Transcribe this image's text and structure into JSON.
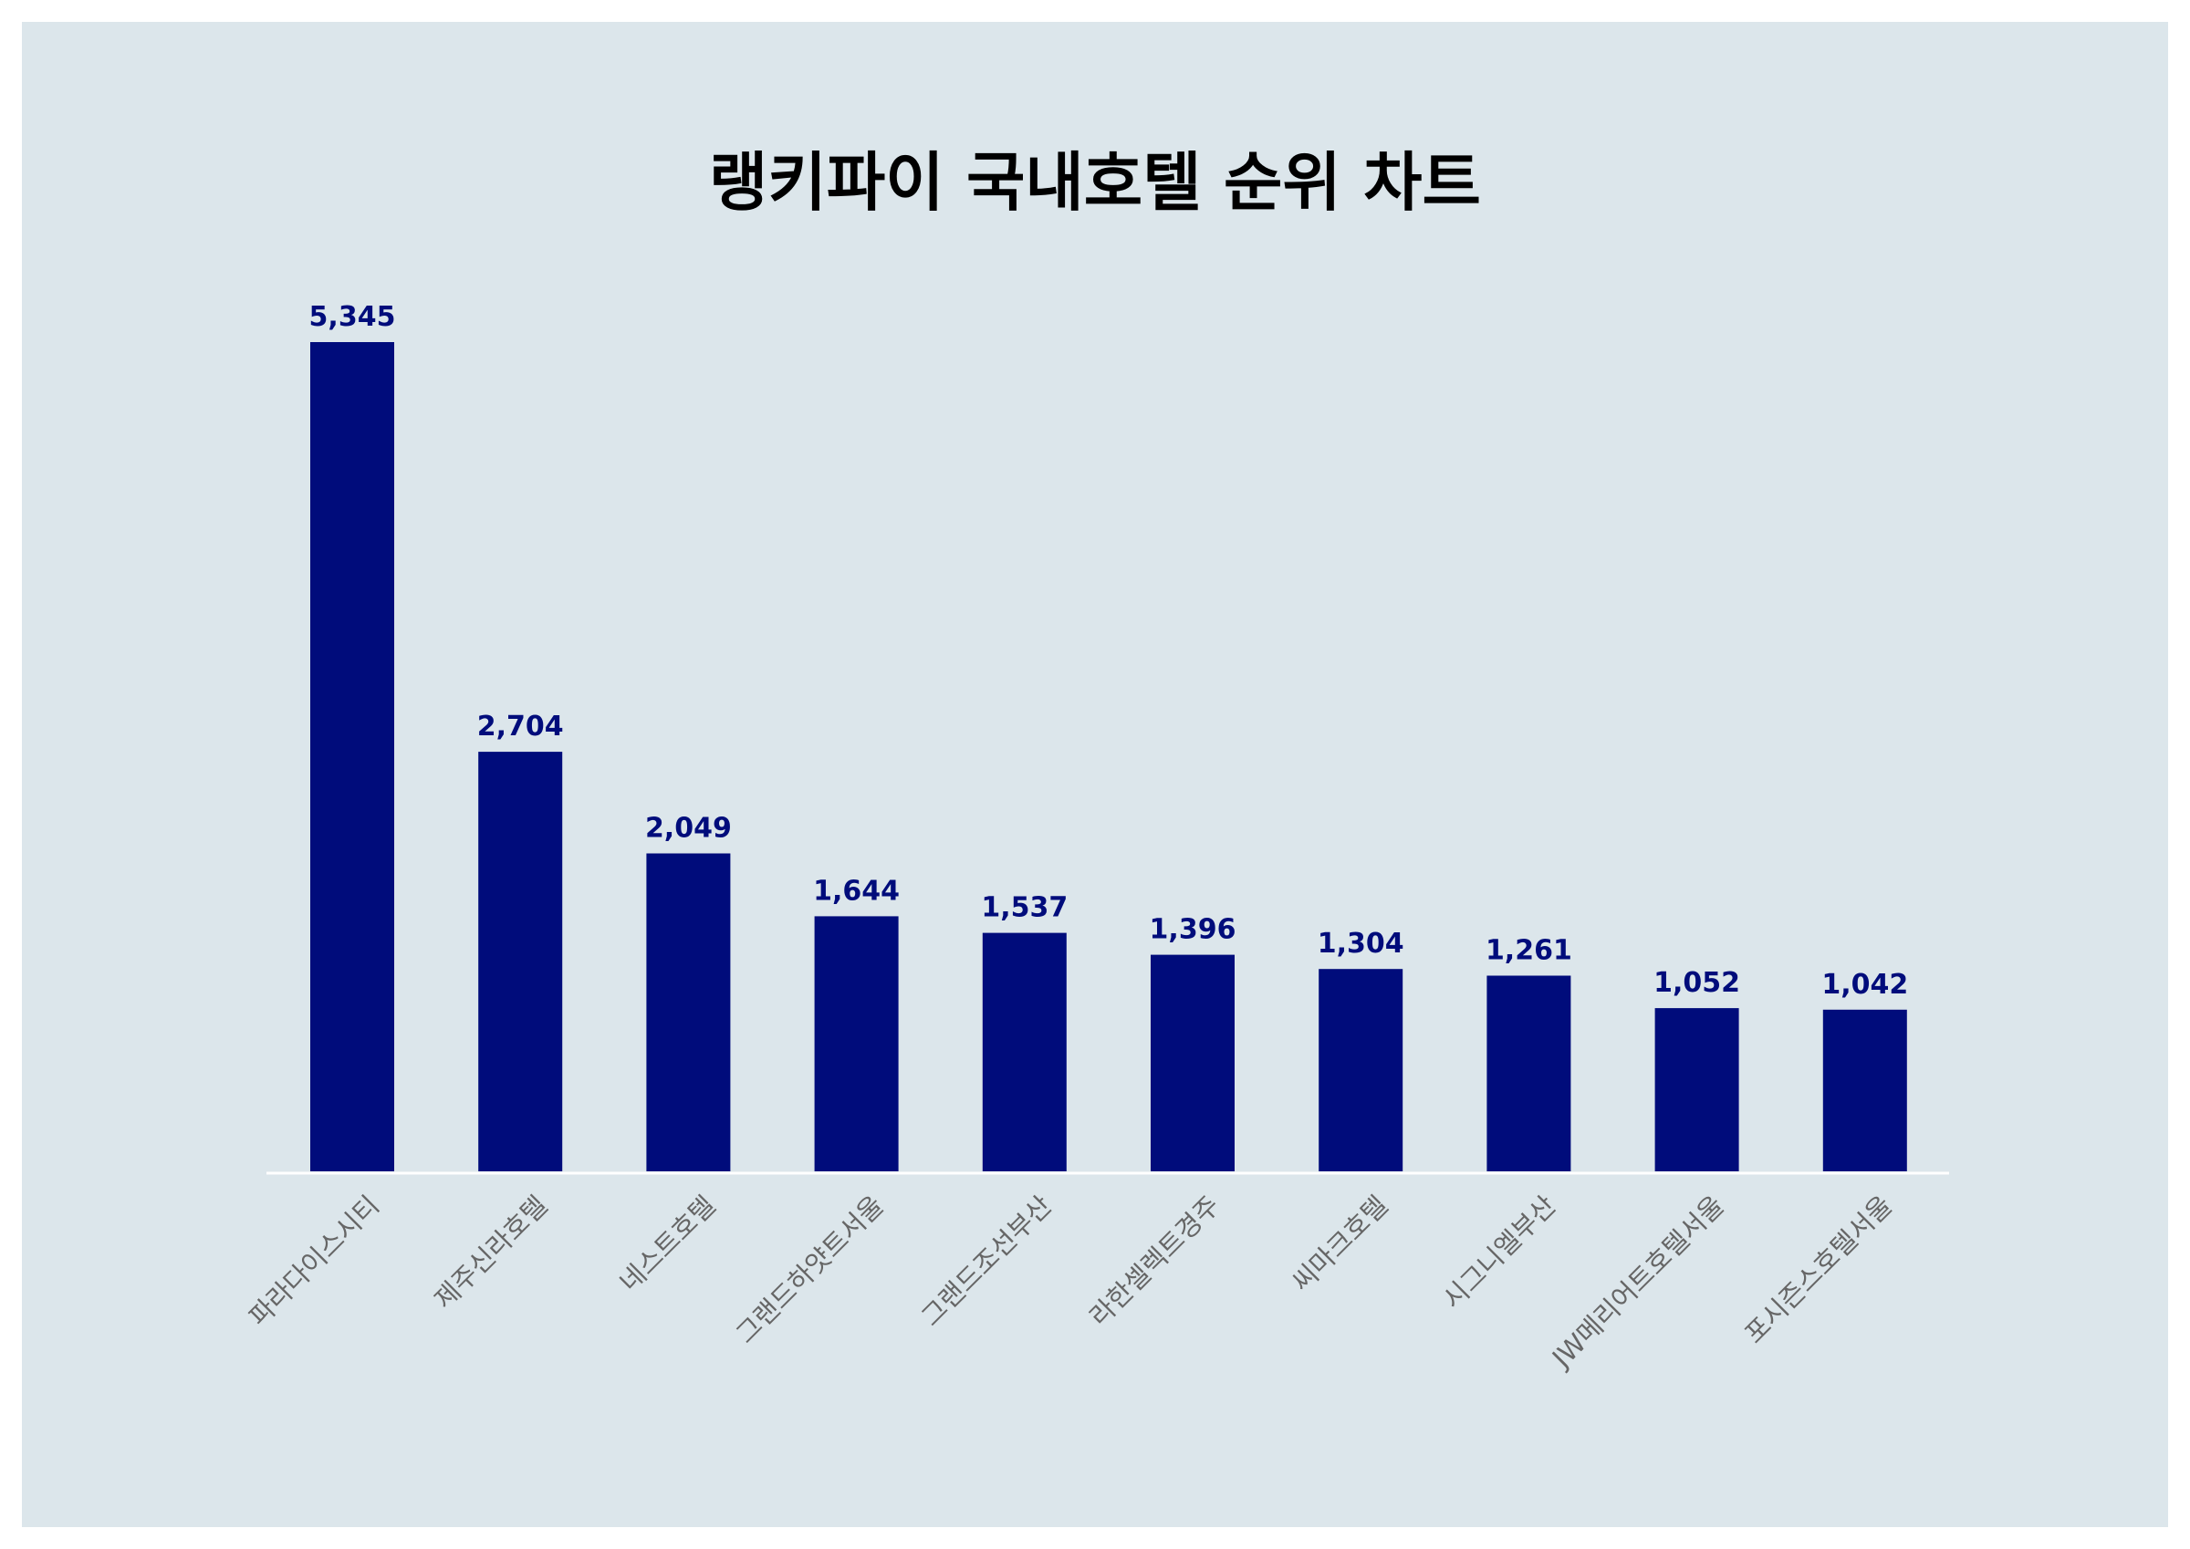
{
  "chart_data": {
    "type": "bar",
    "title": "랭키파이 국내호텔 순위 차트",
    "categories": [
      "파라다이스시티",
      "제주신라호텔",
      "네스트호텔",
      "그랜드하얏트서울",
      "그랜드조선부산",
      "라한셀렉트경주",
      "씨마크호텔",
      "시그니엘부산",
      "JW메리어트호텔서울",
      "포시즌스호텔서울"
    ],
    "values": [
      5345,
      2704,
      2049,
      1644,
      1537,
      1396,
      1304,
      1261,
      1052,
      1042
    ],
    "value_labels": [
      "5,345",
      "2,704",
      "2,049",
      "1,644",
      "1,537",
      "1,396",
      "1,304",
      "1,261",
      "1,052",
      "1,042"
    ],
    "xlabel": "",
    "ylabel": "",
    "ylim": [
      0,
      5345
    ],
    "grid": false,
    "legend": "none",
    "colors": {
      "bar": "#000c7b",
      "value_label": "#000c7b",
      "tick_label": "#666666",
      "baseline": "#ffffff",
      "background": "#dce6eb"
    }
  }
}
